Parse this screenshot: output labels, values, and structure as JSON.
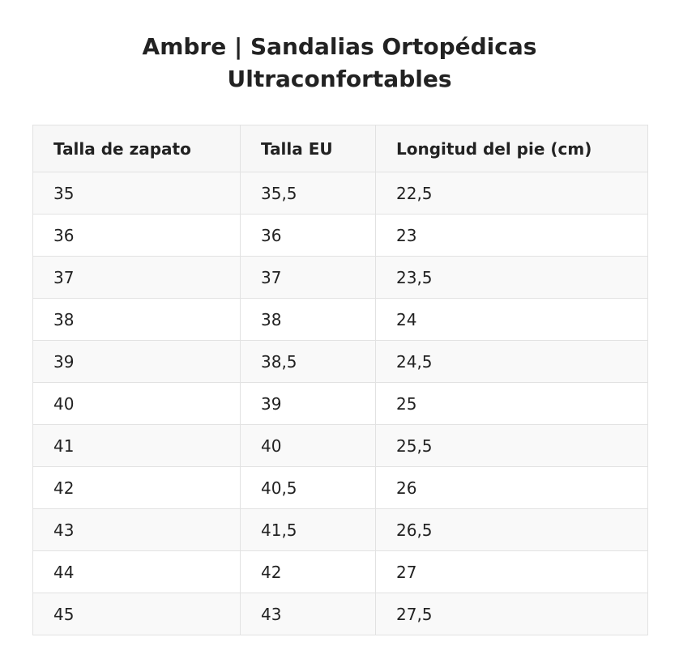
{
  "title": {
    "line1": "Ambre | Sandalias Ortopédicas",
    "line2": "Ultraconfortables"
  },
  "table": {
    "headers": [
      "Talla de zapato",
      "Talla EU",
      "Longitud del pie (cm)"
    ],
    "rows": [
      [
        "35",
        "35,5",
        "22,5"
      ],
      [
        "36",
        "36",
        "23"
      ],
      [
        "37",
        "37",
        "23,5"
      ],
      [
        "38",
        "38",
        "24"
      ],
      [
        "39",
        "38,5",
        "24,5"
      ],
      [
        "40",
        "39",
        "25"
      ],
      [
        "41",
        "40",
        "25,5"
      ],
      [
        "42",
        "40,5",
        "26"
      ],
      [
        "43",
        "41,5",
        "26,5"
      ],
      [
        "44",
        "42",
        "27"
      ],
      [
        "45",
        "43",
        "27,5"
      ]
    ]
  },
  "colors": {
    "header_background": "#f7f7f7",
    "stripe_background": "#f9f9f9",
    "border": "#e2e2e2",
    "text": "#222222"
  }
}
